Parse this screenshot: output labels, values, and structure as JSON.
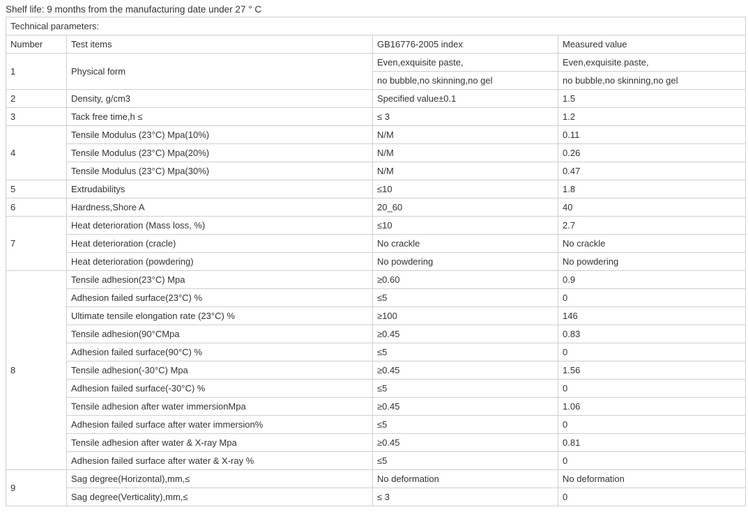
{
  "shelf_life": "Shelf life: 9 months from the manufacturing date under 27 ° C",
  "table": {
    "caption": "Technical parameters:",
    "headers": [
      "Number",
      "Test items",
      "GB16776-2005 index",
      "Measured value"
    ],
    "groups": [
      {
        "number": "1",
        "rows": [
          {
            "item": "Physical form",
            "index": "Even,exquisite paste,",
            "measured": "Even,exquisite paste,"
          },
          {
            "item": "",
            "index": "no bubble,no skinning,no gel",
            "measured": "no bubble,no skinning,no gel"
          }
        ]
      },
      {
        "number": "2",
        "rows": [
          {
            "item": "Density, g/cm3",
            "index": "Specified value±0.1",
            "measured": "1.5"
          }
        ]
      },
      {
        "number": "3",
        "rows": [
          {
            "item": "Tack free time,h ≤",
            "index": "≤ 3",
            "measured": "1.2"
          }
        ]
      },
      {
        "number": "4",
        "rows": [
          {
            "item": "Tensile Modulus (23°C) Mpa(10%)",
            "index": "N/M",
            "measured": "0.11"
          },
          {
            "item": "Tensile Modulus (23°C) Mpa(20%)",
            "index": "N/M",
            "measured": "0.26"
          },
          {
            "item": "Tensile Modulus (23°C) Mpa(30%)",
            "index": "N/M",
            "measured": "0.47"
          }
        ]
      },
      {
        "number": "5",
        "rows": [
          {
            "item": "Extrudabilitys",
            "index": "≤10",
            "measured": "1.8"
          }
        ]
      },
      {
        "number": "6",
        "rows": [
          {
            "item": "Hardness,Shore A",
            "index": "20_60",
            "measured": "40"
          }
        ]
      },
      {
        "number": "7",
        "rows": [
          {
            "item": "Heat deterioration (Mass loss, %)",
            "index": "≤10",
            "measured": "2.7"
          },
          {
            "item": "Heat deterioration (cracle)",
            "index": "No crackle",
            "measured": "No crackle"
          },
          {
            "item": "Heat deterioration (powdering)",
            "index": "No powdering",
            "measured": "No powdering"
          }
        ]
      },
      {
        "number": "8",
        "rows": [
          {
            "item": "Tensile adhesion(23°C) Mpa",
            "index": "≥0.60",
            "measured": "0.9"
          },
          {
            "item": "Adhesion failed surface(23°C) %",
            "index": "≤5",
            "measured": "0"
          },
          {
            "item": "Ultimate tensile elongation rate (23°C) %",
            "index": "≥100",
            "measured": "146"
          },
          {
            "item": "Tensile adhesion(90°CMpa",
            "index": "≥0.45",
            "measured": "0.83"
          },
          {
            "item": "Adhesion failed surface(90°C) %",
            "index": "≤5",
            "measured": "0"
          },
          {
            "item": "Tensile adhesion(-30°C) Mpa",
            "index": "≥0.45",
            "measured": "1.56"
          },
          {
            "item": "Adhesion failed surface(-30°C) %",
            "index": "≤5",
            "measured": "0"
          },
          {
            "item": "Tensile adhesion after water immersionMpa",
            "index": "≥0.45",
            "measured": "1.06"
          },
          {
            "item": "Adhesion failed surface after water immersion%",
            "index": "≤5",
            "measured": "0"
          },
          {
            "item": "Tensile adhesion after water & X-ray Mpa",
            "index": "≥0.45",
            "measured": "0.81"
          },
          {
            "item": "Adhesion failed surface after water & X-ray %",
            "index": "≤5",
            "measured": "0"
          }
        ]
      },
      {
        "number": "9",
        "rows": [
          {
            "item": "Sag degree(Horizontal),mm,≤",
            "index": "No deformation",
            "measured": "No deformation"
          },
          {
            "item": "Sag degree(Verticality),mm,≤",
            "index": "≤ 3",
            "measured": "0"
          }
        ]
      }
    ]
  }
}
